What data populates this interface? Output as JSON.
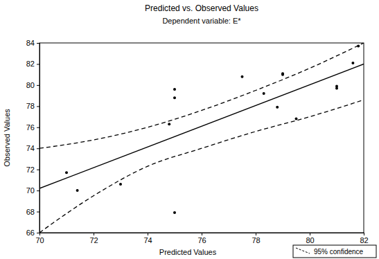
{
  "chart_data": {
    "type": "scatter",
    "title": "Predicted vs. Observed Values",
    "subtitle": "Dependent variable: E*",
    "x_label": "Predicted Values",
    "y_label": "Observed Values",
    "xlim": [
      70,
      82
    ],
    "xticks": [
      70,
      72,
      74,
      76,
      78,
      80,
      82
    ],
    "ylim": [
      66,
      84
    ],
    "yticks": [
      66,
      68,
      70,
      72,
      74,
      76,
      78,
      80,
      82,
      84
    ],
    "grid": false,
    "legend": "lower right",
    "series": [
      {
        "type": "scatter",
        "marker": "circle",
        "color": "#000000",
        "x": [
          71.0,
          71.4,
          73.0,
          74.8,
          75.0,
          75.0,
          75.0,
          77.5,
          78.3,
          78.8,
          79.0,
          79.0,
          79.5,
          81.0,
          81.0,
          81.6,
          81.8
        ],
        "values": [
          71.7,
          70.0,
          70.6,
          76.3,
          79.6,
          78.8,
          67.9,
          80.8,
          79.2,
          77.9,
          81.0,
          81.1,
          76.8,
          79.9,
          79.7,
          82.1,
          83.7
        ]
      },
      {
        "type": "line",
        "line_style": "solid",
        "color": "#000000",
        "x": [
          70,
          82
        ],
        "values": [
          70.2,
          82.0
        ]
      },
      {
        "type": "line",
        "line_style": "dashed",
        "color": "#000000",
        "name": "95% confidence",
        "x": [
          70,
          72,
          74,
          76,
          78,
          80,
          82
        ],
        "values": [
          74.0,
          74.8,
          76.0,
          77.6,
          79.5,
          81.6,
          84.0
        ]
      },
      {
        "type": "line",
        "line_style": "dashed",
        "color": "#000000",
        "x": [
          70,
          72,
          74,
          76,
          78,
          80,
          82
        ],
        "values": [
          66.0,
          69.5,
          72.3,
          74.0,
          75.6,
          77.0,
          78.6
        ]
      }
    ]
  }
}
